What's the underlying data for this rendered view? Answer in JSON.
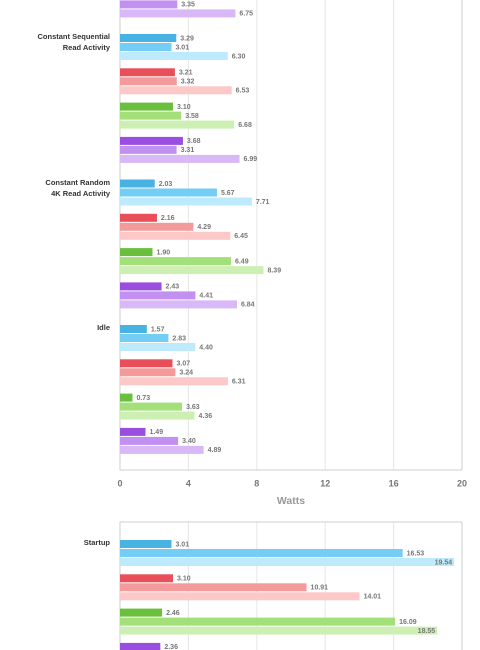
{
  "chart_data": [
    {
      "type": "bar",
      "orientation": "horizontal",
      "categories": [
        null,
        "Constant Sequential\nRead Activity",
        "Constant Random\n4K Read Activity",
        "Idle"
      ],
      "series": [
        {
          "color": "#48b2e2",
          "values": [
            null,
            3.29,
            2.03,
            1.57
          ],
          "value_labels": [
            null,
            "3.29",
            "2.03",
            "1.57"
          ]
        },
        {
          "color": "#74cdf4",
          "values": [
            null,
            3.01,
            5.67,
            2.83
          ],
          "value_labels": [
            null,
            "3.01",
            "5.67",
            "2.83"
          ]
        },
        {
          "color": "#bdeafc",
          "values": [
            null,
            6.3,
            7.71,
            4.4
          ],
          "value_labels": [
            null,
            "6.30",
            "7.71",
            "4.40"
          ]
        },
        {
          "color": "#e84f58",
          "values": [
            null,
            3.21,
            2.16,
            3.07
          ],
          "value_labels": [
            null,
            "3.21",
            "2.16",
            "3.07"
          ]
        },
        {
          "color": "#f49a9b",
          "values": [
            null,
            3.32,
            4.29,
            3.24
          ],
          "value_labels": [
            null,
            "3.32",
            "4.29",
            "3.24"
          ]
        },
        {
          "color": "#fcc8c8",
          "values": [
            null,
            6.53,
            6.45,
            6.31
          ],
          "value_labels": [
            null,
            "6.53",
            "6.45",
            "6.31"
          ]
        },
        {
          "color": "#6abf3c",
          "values": [
            null,
            3.1,
            1.9,
            0.73
          ],
          "value_labels": [
            null,
            "3.10",
            "1.90",
            "0.73"
          ]
        },
        {
          "color": "#a3e07a",
          "values": [
            null,
            3.58,
            6.49,
            3.63
          ],
          "value_labels": [
            null,
            "3.58",
            "6.49",
            "3.63"
          ]
        },
        {
          "color": "#cdefb4",
          "values": [
            null,
            6.68,
            8.39,
            4.36
          ],
          "value_labels": [
            null,
            "6.68",
            "8.39",
            "4.36"
          ]
        },
        {
          "color": "#9a4ee0",
          "values": [
            null,
            3.68,
            2.43,
            1.49
          ],
          "value_labels": [
            null,
            "3.68",
            "2.43",
            "1.49"
          ]
        },
        {
          "color": "#c290f0",
          "values": [
            3.35,
            3.31,
            4.41,
            3.4
          ],
          "value_labels": [
            "3.35",
            "3.31",
            "4.41",
            "3.40"
          ]
        },
        {
          "color": "#d8b8f6",
          "values": [
            6.75,
            6.99,
            6.84,
            4.89
          ],
          "value_labels": [
            "6.75",
            "6.99",
            "6.84",
            "4.89"
          ]
        }
      ],
      "xlim": [
        0,
        20
      ],
      "xticks": [
        0,
        4,
        8,
        12,
        16,
        20
      ],
      "x_label": "Watts",
      "grid": true
    },
    {
      "type": "bar",
      "orientation": "horizontal",
      "categories": [
        "Startup"
      ],
      "series": [
        {
          "color": "#48b2e2",
          "values": [
            3.01
          ],
          "value_labels": [
            "3.01"
          ]
        },
        {
          "color": "#74cdf4",
          "values": [
            16.53
          ],
          "value_labels": [
            "16.53"
          ]
        },
        {
          "color": "#bdeafc",
          "values": [
            19.54
          ],
          "value_labels": [
            "19.54"
          ]
        },
        {
          "color": "#e84f58",
          "values": [
            3.1
          ],
          "value_labels": [
            "3.10"
          ]
        },
        {
          "color": "#f49a9b",
          "values": [
            10.91
          ],
          "value_labels": [
            "10.91"
          ]
        },
        {
          "color": "#fcc8c8",
          "values": [
            14.01
          ],
          "value_labels": [
            "14.01"
          ]
        },
        {
          "color": "#6abf3c",
          "values": [
            2.46
          ],
          "value_labels": [
            "2.46"
          ]
        },
        {
          "color": "#a3e07a",
          "values": [
            16.09
          ],
          "value_labels": [
            "16.09"
          ]
        },
        {
          "color": "#cdefb4",
          "values": [
            18.55
          ],
          "value_labels": [
            "18.55"
          ]
        },
        {
          "color": "#9a4ee0",
          "values": [
            2.36
          ],
          "value_labels": [
            "2.36"
          ]
        },
        {
          "color": "#c290f0",
          "values": [
            null
          ]
        },
        {
          "color": "#d8b8f6",
          "values": [
            null
          ]
        }
      ],
      "xlim": [
        0,
        20
      ],
      "grid": true
    }
  ]
}
